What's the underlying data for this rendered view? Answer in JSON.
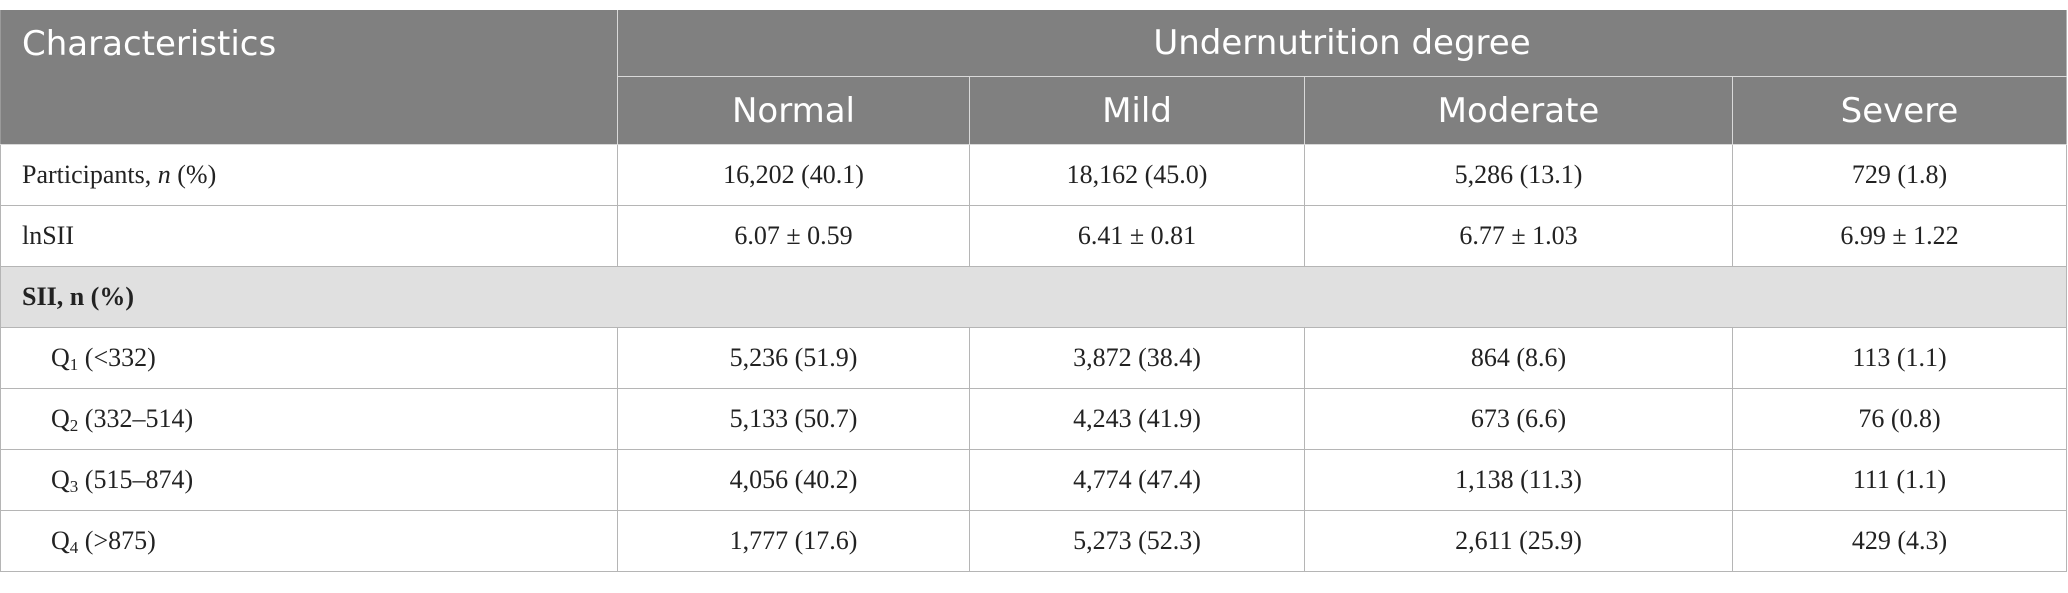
{
  "header": {
    "characteristics": "Characteristics",
    "group": "Undernutrition degree",
    "columns": [
      "Normal",
      "Mild",
      "Moderate",
      "Severe"
    ]
  },
  "rows": {
    "participants": {
      "label_pre": "Participants, ",
      "label_it": "n",
      "label_post": " (%)",
      "cells": [
        "16,202 (40.1)",
        "18,162 (45.0)",
        "5,286 (13.1)",
        "729 (1.8)"
      ]
    },
    "lnsii": {
      "label": "lnSII",
      "cells": [
        "6.07 ± 0.59",
        "6.41 ± 0.81",
        "6.77 ± 1.03",
        "6.99 ± 1.22"
      ]
    },
    "section": "SII, n (%)",
    "quartiles": [
      {
        "q": "Q",
        "sub": "1",
        "range": " (<332)",
        "cells": [
          "5,236 (51.9)",
          "3,872 (38.4)",
          "864 (8.6)",
          "113 (1.1)"
        ]
      },
      {
        "q": "Q",
        "sub": "2",
        "range": " (332–514)",
        "cells": [
          "5,133 (50.7)",
          "4,243 (41.9)",
          "673 (6.6)",
          "76 (0.8)"
        ]
      },
      {
        "q": "Q",
        "sub": "3",
        "range": " (515–874)",
        "cells": [
          "4,056 (40.2)",
          "4,774 (47.4)",
          "1,138 (11.3)",
          "111 (1.1)"
        ]
      },
      {
        "q": "Q",
        "sub": "4",
        "range": " (>875)",
        "cells": [
          "1,777 (17.6)",
          "5,273 (52.3)",
          "2,611 (25.9)",
          "429 (4.3)"
        ]
      }
    ]
  }
}
